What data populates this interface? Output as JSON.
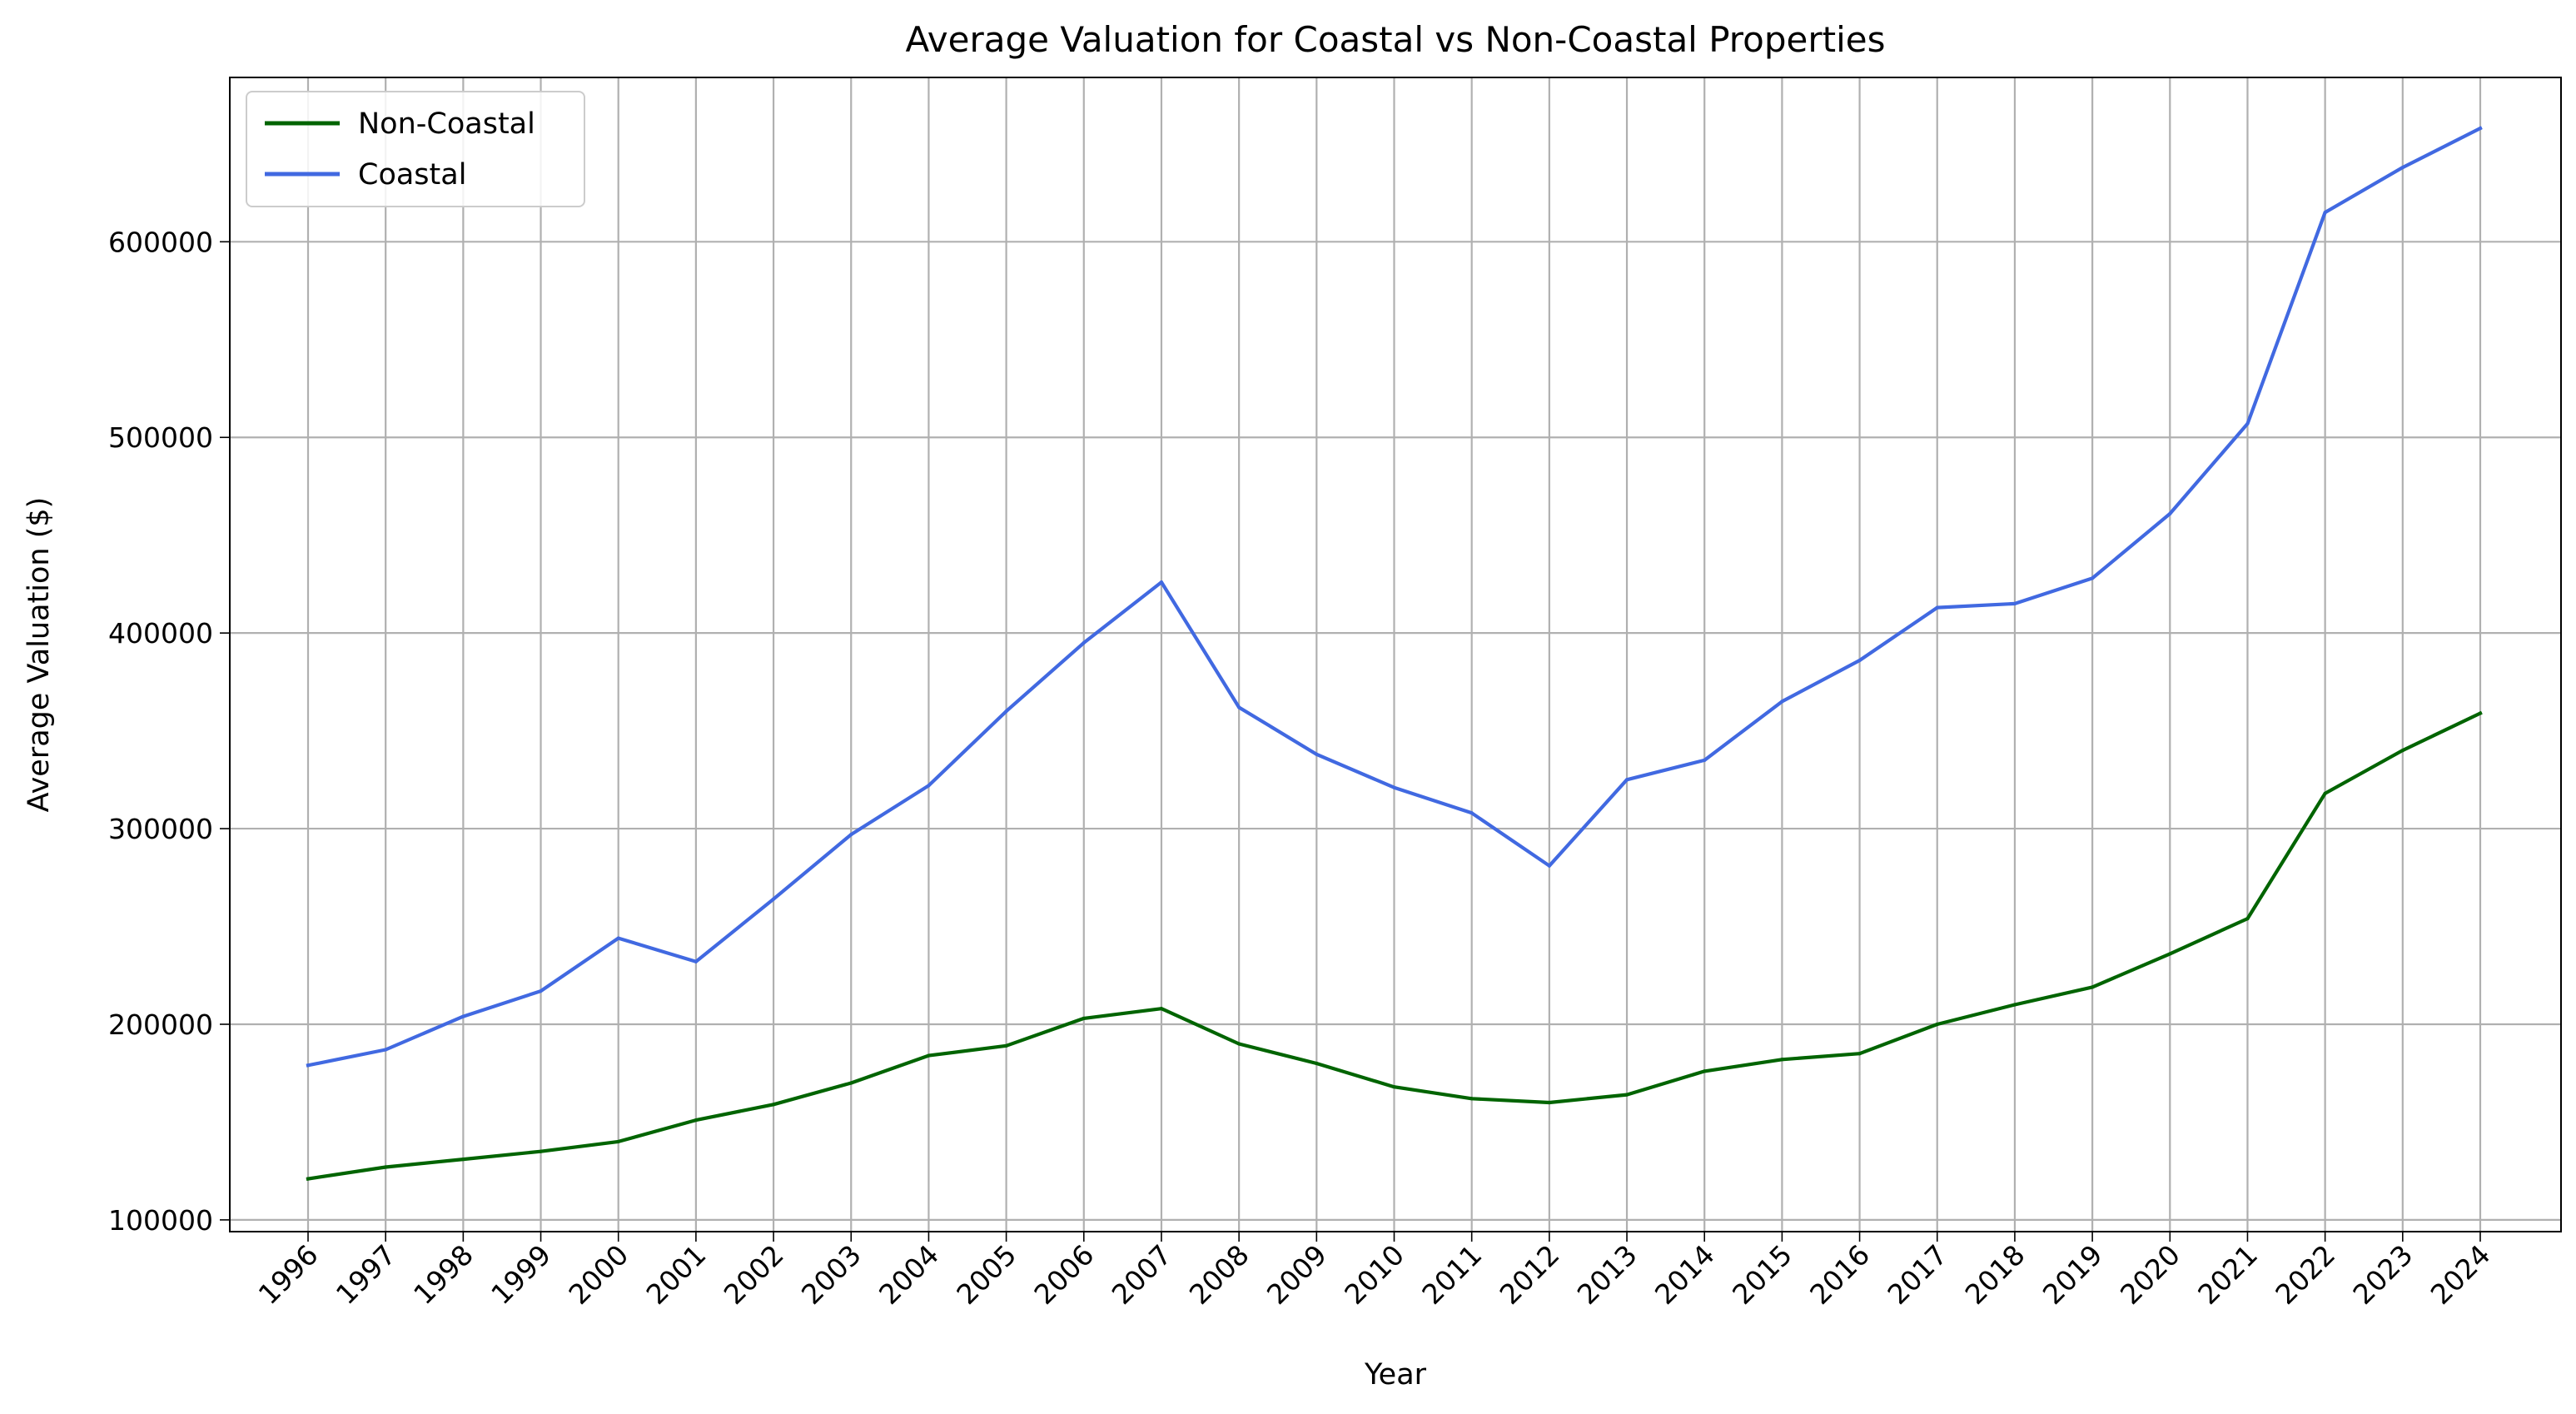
{
  "chart_data": {
    "type": "line",
    "title": "Average Valuation for Coastal vs Non-Coastal Properties",
    "xlabel": "Year",
    "ylabel": "Average Valuation ($)",
    "x": [
      "1996",
      "1997",
      "1998",
      "1999",
      "2000",
      "2001",
      "2002",
      "2003",
      "2004",
      "2005",
      "2006",
      "2007",
      "2008",
      "2009",
      "2010",
      "2011",
      "2012",
      "2013",
      "2014",
      "2015",
      "2016",
      "2017",
      "2018",
      "2019",
      "2020",
      "2021",
      "2022",
      "2023",
      "2024"
    ],
    "ylim": [
      94000,
      684000
    ],
    "yticks": [
      100000,
      200000,
      300000,
      400000,
      500000,
      600000
    ],
    "ytick_labels": [
      "100000",
      "200000",
      "300000",
      "400000",
      "500000",
      "600000"
    ],
    "grid": true,
    "legend": {
      "placement": "top-left"
    },
    "series": [
      {
        "name": "Non-Coastal",
        "color": "#006400",
        "values": [
          121000,
          127000,
          131000,
          135000,
          140000,
          151000,
          159000,
          170000,
          184000,
          189000,
          203000,
          208000,
          190000,
          180000,
          168000,
          162000,
          160000,
          164000,
          176000,
          182000,
          185000,
          200000,
          210000,
          219000,
          236000,
          254000,
          318000,
          340000,
          359000
        ]
      },
      {
        "name": "Coastal",
        "color": "#4169e1",
        "values": [
          179000,
          187000,
          204000,
          217000,
          244000,
          232000,
          264000,
          297000,
          322000,
          360000,
          395000,
          426000,
          362000,
          338000,
          321000,
          308000,
          281000,
          325000,
          335000,
          365000,
          386000,
          413000,
          415000,
          428000,
          461000,
          507000,
          615000,
          638000,
          658000
        ]
      }
    ]
  }
}
